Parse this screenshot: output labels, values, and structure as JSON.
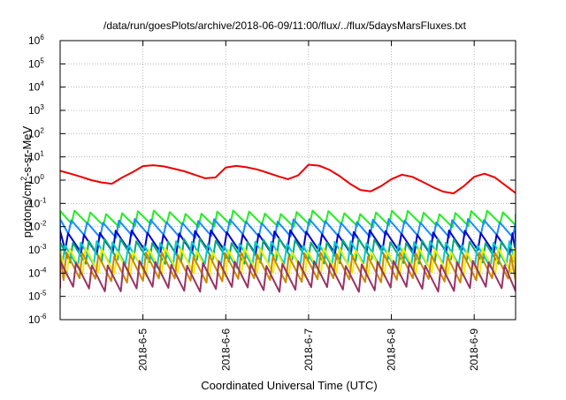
{
  "chart_data": {
    "type": "line",
    "title": "/data/run/goesPlots/archive/2018-06-09/11:00/flux/../flux/5daysMarsFluxes.txt",
    "xlabel": "Coordinated Universal Time (UTC)",
    "ylabel": {
      "base": "protons/cm",
      "sup": "2",
      "rest": "-s-sr-MeV"
    },
    "y_scale": "log",
    "ylim": [
      1e-06,
      1000000.0
    ],
    "y_ticks": [
      {
        "base": "10",
        "exp": "6"
      },
      {
        "base": "10",
        "exp": "5"
      },
      {
        "base": "10",
        "exp": "4"
      },
      {
        "base": "10",
        "exp": "3"
      },
      {
        "base": "10",
        "exp": "2"
      },
      {
        "base": "10",
        "exp": "1"
      },
      {
        "base": "10",
        "exp": "0"
      },
      {
        "base": "10",
        "exp": "-1"
      },
      {
        "base": "10",
        "exp": "-2"
      },
      {
        "base": "10",
        "exp": "-3"
      },
      {
        "base": "10",
        "exp": "-4"
      },
      {
        "base": "10",
        "exp": "-5"
      },
      {
        "base": "10",
        "exp": "-6"
      }
    ],
    "x_ticks": [
      "2018-6-5",
      "2018-6-6",
      "2018-6-7",
      "2018-6-8",
      "2018-6-9"
    ],
    "xlim": [
      "2018-06-04T00:00",
      "2018-06-09T12:00"
    ],
    "grid": true,
    "series": [
      {
        "color": "#ee0000",
        "points": [
          [
            "2018-06-04T00:00",
            2.5
          ],
          [
            "2018-06-04T03:00",
            1.9
          ],
          [
            "2018-06-04T06:00",
            1.4
          ],
          [
            "2018-06-04T09:00",
            1.0
          ],
          [
            "2018-06-04T12:00",
            0.8
          ],
          [
            "2018-06-04T15:00",
            0.7
          ],
          [
            "2018-06-04T18:00",
            1.3
          ],
          [
            "2018-06-04T21:00",
            2.2
          ],
          [
            "2018-06-05T00:00",
            4.0
          ],
          [
            "2018-06-05T03:00",
            4.4
          ],
          [
            "2018-06-05T06:00",
            3.9
          ],
          [
            "2018-06-05T09:00",
            3.1
          ],
          [
            "2018-06-05T12:00",
            2.4
          ],
          [
            "2018-06-05T15:00",
            1.7
          ],
          [
            "2018-06-05T18:00",
            1.2
          ],
          [
            "2018-06-05T21:00",
            1.3
          ],
          [
            "2018-06-06T00:00",
            3.5
          ],
          [
            "2018-06-06T03:00",
            4.1
          ],
          [
            "2018-06-06T06:00",
            3.6
          ],
          [
            "2018-06-06T09:00",
            2.9
          ],
          [
            "2018-06-06T12:00",
            2.1
          ],
          [
            "2018-06-06T15:00",
            1.5
          ],
          [
            "2018-06-06T18:00",
            1.1
          ],
          [
            "2018-06-06T21:00",
            1.6
          ],
          [
            "2018-06-07T00:00",
            4.6
          ],
          [
            "2018-06-07T03:00",
            4.2
          ],
          [
            "2018-06-07T06:00",
            2.8
          ],
          [
            "2018-06-07T09:00",
            1.5
          ],
          [
            "2018-06-07T12:00",
            0.7
          ],
          [
            "2018-06-07T15:00",
            0.38
          ],
          [
            "2018-06-07T18:00",
            0.33
          ],
          [
            "2018-06-07T21:00",
            0.55
          ],
          [
            "2018-06-08T00:00",
            1.1
          ],
          [
            "2018-06-08T03:00",
            1.7
          ],
          [
            "2018-06-08T06:00",
            1.4
          ],
          [
            "2018-06-08T09:00",
            0.85
          ],
          [
            "2018-06-08T12:00",
            0.5
          ],
          [
            "2018-06-08T15:00",
            0.32
          ],
          [
            "2018-06-08T18:00",
            0.27
          ],
          [
            "2018-06-08T21:00",
            0.55
          ],
          [
            "2018-06-09T00:00",
            1.4
          ],
          [
            "2018-06-09T03:00",
            1.9
          ],
          [
            "2018-06-09T06:00",
            1.3
          ],
          [
            "2018-06-09T09:00",
            0.6
          ],
          [
            "2018-06-09T12:00",
            0.28
          ]
        ]
      },
      {
        "color": "#22ee22",
        "center": 0.022,
        "period_hours": 4.6,
        "phase": 0.1,
        "pulse": 1.9,
        "wave": 0.18
      },
      {
        "color": "#1a8cff",
        "center": 0.0085,
        "period_hours": 4.6,
        "phase": 0.3,
        "pulse": 2.1,
        "wave": 0.2
      },
      {
        "color": "#0000cc",
        "center": 0.0022,
        "period_hours": 4.6,
        "phase": 0.5,
        "pulse": 2.6,
        "wave": 0.22
      },
      {
        "color": "#00aa77",
        "center": 0.0009,
        "period_hours": 4.6,
        "phase": 0.2,
        "pulse": 2.8,
        "wave": 0.22
      },
      {
        "color": "#00cccc",
        "center": 0.00065,
        "period_hours": 4.6,
        "phase": 0.7,
        "pulse": 3.0,
        "wave": 0.22
      },
      {
        "color": "#eeee00",
        "center": 0.0003,
        "period_hours": 4.6,
        "phase": 0.4,
        "pulse": 3.4,
        "wave": 0.22
      },
      {
        "color": "#cc8800",
        "center": 0.00018,
        "period_hours": 4.6,
        "phase": 0.6,
        "pulse": 3.6,
        "wave": 0.22
      },
      {
        "color": "#993366",
        "center": 7.5e-05,
        "period_hours": 4.6,
        "phase": 0.0,
        "pulse": 3.6,
        "wave": 0.25
      }
    ]
  }
}
